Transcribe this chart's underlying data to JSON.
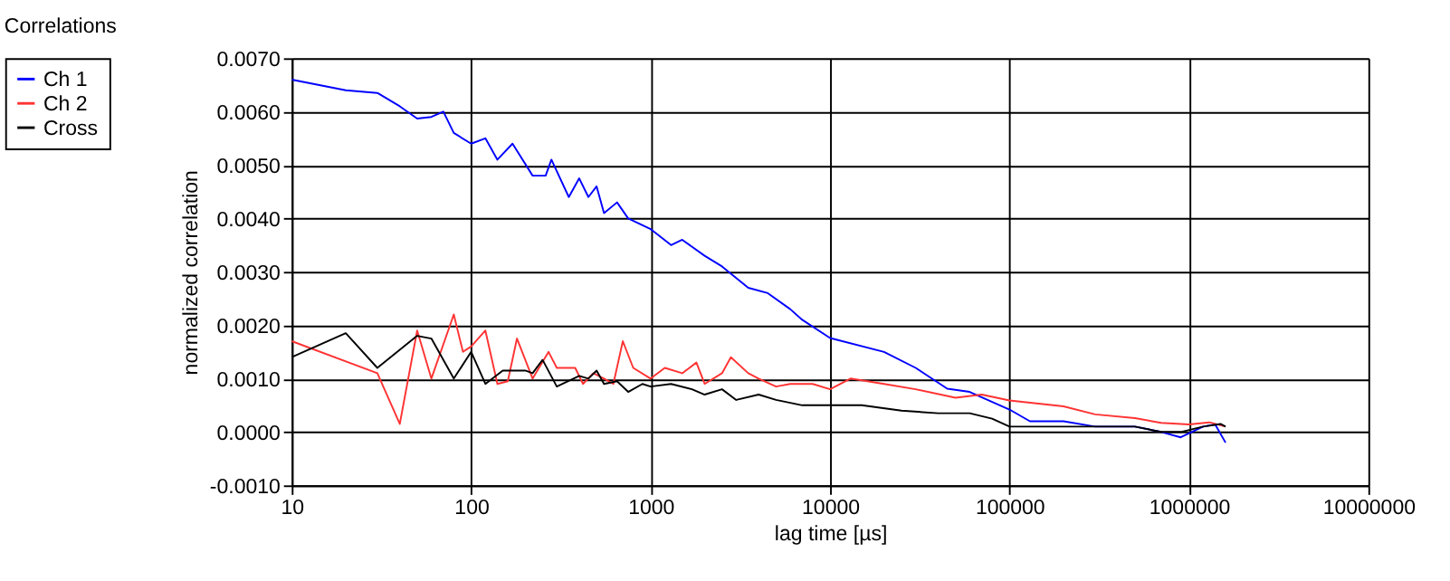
{
  "chart_data": {
    "type": "line",
    "title": "Correlations",
    "xlabel": "lag time [µs]",
    "ylabel": "normalized correlation",
    "log": "x",
    "grid": true,
    "legend": "left",
    "marker": "none",
    "line_style": "solid",
    "xlim": [
      10,
      10000000
    ],
    "xticks": [
      10,
      100,
      1000,
      10000,
      100000,
      1000000,
      10000000
    ],
    "ylim": [
      -0.001,
      0.007
    ],
    "yticks": [
      {
        "value": -0.001,
        "label": "-0.0010"
      },
      {
        "value": 0,
        "label": "0.0000"
      },
      {
        "value": 0.001,
        "label": "0.0010"
      },
      {
        "value": 0.002,
        "label": "0.0020"
      },
      {
        "value": 0.003,
        "label": "0.0030"
      },
      {
        "value": 0.004,
        "label": "0.0040"
      },
      {
        "value": 0.005,
        "label": "0.0050"
      },
      {
        "value": 0.006,
        "label": "0.0060"
      },
      {
        "value": 0.007,
        "label": "0.0070"
      }
    ],
    "series": [
      {
        "name": "Ch 1",
        "color": "#0000ff",
        "x": [
          10,
          20,
          30,
          40,
          50,
          60,
          70,
          80,
          100,
          120,
          140,
          170,
          220,
          260,
          280,
          350,
          400,
          450,
          500,
          550,
          650,
          750,
          1000,
          1300,
          1500,
          2000,
          2500,
          3500,
          4500,
          6000,
          7000,
          10000,
          20000,
          30000,
          45000,
          60000,
          100000,
          130000,
          200000,
          300000,
          500000,
          700000,
          900000,
          1200000,
          1400000,
          1600000
        ],
        "values": [
          0.0066,
          0.0064,
          0.00635,
          0.0061,
          0.00587,
          0.0059,
          0.006,
          0.0056,
          0.0054,
          0.0055,
          0.0051,
          0.0054,
          0.0048,
          0.0048,
          0.0051,
          0.0044,
          0.00475,
          0.0044,
          0.0046,
          0.0041,
          0.0043,
          0.004,
          0.0038,
          0.0035,
          0.0036,
          0.0033,
          0.0031,
          0.0027,
          0.0026,
          0.0023,
          0.0021,
          0.00176,
          0.0015,
          0.0012,
          0.00081,
          0.00075,
          0.00042,
          0.0002,
          0.0002,
          0.0001,
          0.0001,
          0.0,
          -0.0001,
          0.0001,
          0.00014,
          -0.0002
        ]
      },
      {
        "name": "Ch 2",
        "color": "#ff3333",
        "x": [
          10,
          30,
          40,
          50,
          60,
          80,
          90,
          100,
          120,
          140,
          160,
          180,
          220,
          270,
          300,
          380,
          420,
          480,
          550,
          620,
          700,
          800,
          1000,
          1200,
          1500,
          1800,
          2000,
          2500,
          2800,
          3500,
          4000,
          5000,
          6000,
          8000,
          10000,
          13000,
          20000,
          30000,
          50000,
          70000,
          100000,
          200000,
          300000,
          500000,
          700000,
          1000000,
          1300000,
          1600000
        ],
        "values": [
          0.0017,
          0.0011,
          0.00015,
          0.0019,
          0.001,
          0.0022,
          0.0015,
          0.0016,
          0.0019,
          0.0009,
          0.00095,
          0.00175,
          0.001,
          0.0015,
          0.0012,
          0.0012,
          0.0009,
          0.0011,
          0.001,
          0.0009,
          0.0017,
          0.0012,
          0.001,
          0.0012,
          0.0011,
          0.0013,
          0.0009,
          0.0011,
          0.0014,
          0.0011,
          0.001,
          0.00085,
          0.0009,
          0.0009,
          0.0008,
          0.001,
          0.0009,
          0.0008,
          0.00064,
          0.0007,
          0.00059,
          0.00048,
          0.00033,
          0.00026,
          0.00017,
          0.00014,
          0.00018,
          0.0001
        ]
      },
      {
        "name": "Cross",
        "color": "#000000",
        "x": [
          10,
          20,
          30,
          50,
          60,
          80,
          100,
          120,
          150,
          200,
          220,
          250,
          300,
          400,
          450,
          500,
          550,
          650,
          750,
          900,
          1000,
          1300,
          1700,
          2000,
          2500,
          3000,
          4000,
          5000,
          7000,
          8000,
          10000,
          15000,
          25000,
          40000,
          60000,
          80000,
          100000,
          200000,
          500000,
          700000,
          900000,
          1200000,
          1500000,
          1600000
        ],
        "values": [
          0.0014,
          0.00185,
          0.0012,
          0.0018,
          0.00175,
          0.001,
          0.0015,
          0.0009,
          0.00115,
          0.00115,
          0.0011,
          0.00135,
          0.00085,
          0.00105,
          0.001,
          0.00115,
          0.0009,
          0.00095,
          0.00075,
          0.0009,
          0.00085,
          0.0009,
          0.0008,
          0.0007,
          0.0008,
          0.0006,
          0.0007,
          0.0006,
          0.0005,
          0.0005,
          0.0005,
          0.0005,
          0.0004,
          0.00035,
          0.00035,
          0.00025,
          0.0001,
          0.0001,
          0.0001,
          0.0,
          0.0,
          0.0001,
          0.00015,
          0.0001
        ]
      }
    ]
  }
}
